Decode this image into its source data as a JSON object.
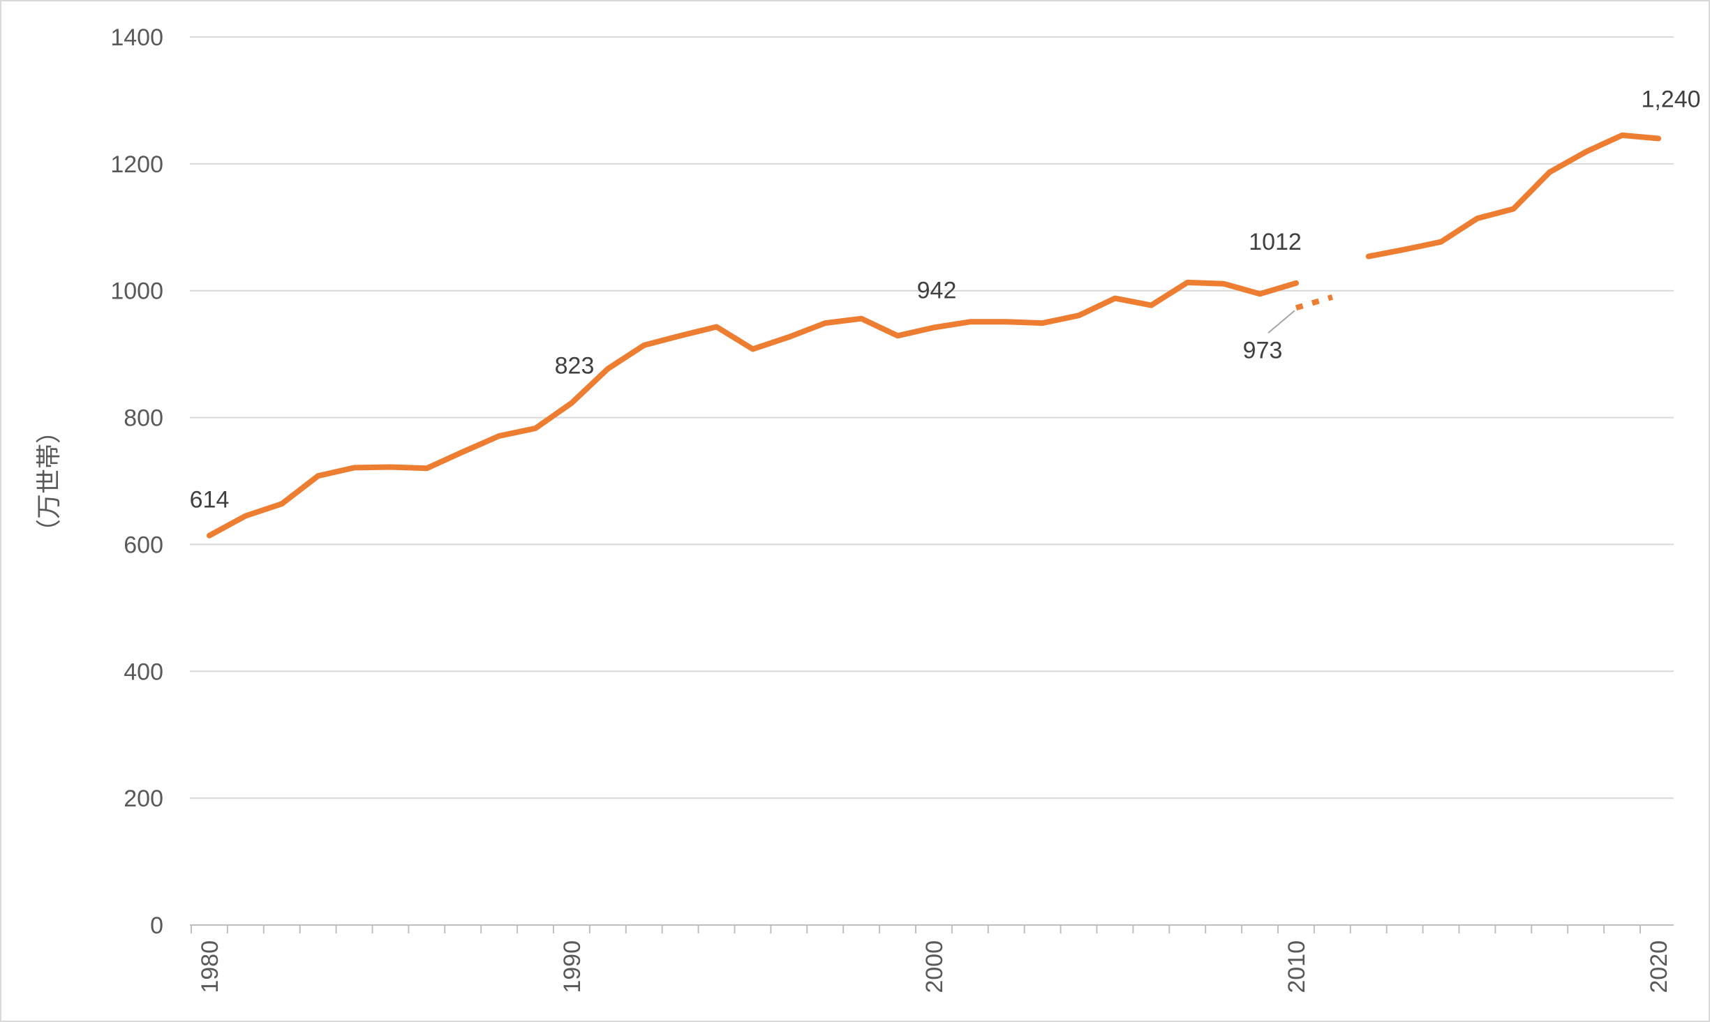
{
  "chart_data": {
    "type": "line",
    "title": "",
    "xlabel": "",
    "ylabel": "（万世帯）",
    "ylim": [
      0,
      1400
    ],
    "yticks": [
      0,
      200,
      400,
      600,
      800,
      1000,
      1200,
      1400
    ],
    "xlim": [
      1980,
      2020
    ],
    "xticks": [
      1980,
      1990,
      2000,
      2010,
      2020
    ],
    "grid": "horizontal",
    "legend": "none",
    "color": "#ED7D31",
    "series": [
      {
        "x": [
          1980,
          1981,
          1982,
          1983,
          1984,
          1985,
          1986,
          1987,
          1988,
          1989,
          1990,
          1991,
          1992,
          1993,
          1994,
          1995,
          1996,
          1997,
          1998,
          1999,
          2000,
          2001,
          2002,
          2003,
          2004,
          2005,
          2006,
          2007,
          2008,
          2009,
          2010
        ],
        "values": [
          614,
          645,
          664,
          708,
          721,
          722,
          720,
          746,
          771,
          783,
          823,
          877,
          914,
          929,
          943,
          908,
          927,
          949,
          956,
          929,
          942,
          951,
          951,
          949,
          961,
          988,
          977,
          1013,
          1011,
          995,
          1012
        ],
        "style": "solid"
      },
      {
        "x": [
          2010,
          2011
        ],
        "values": [
          973,
          990
        ],
        "style": "dashed"
      },
      {
        "x": [
          2012,
          2013,
          2014,
          2015,
          2016,
          2017,
          2018,
          2019,
          2020
        ],
        "values": [
          1054,
          1065,
          1077,
          1114,
          1129,
          1187,
          1219,
          1245,
          1240
        ],
        "style": "solid"
      }
    ],
    "data_labels": [
      {
        "x": 1980,
        "y": 614,
        "text": "614"
      },
      {
        "x": 1990,
        "y": 823,
        "text": "823"
      },
      {
        "x": 2000,
        "y": 942,
        "text": "942"
      },
      {
        "x": 2010,
        "y": 1012,
        "text": "1012"
      },
      {
        "x": 2010,
        "y": 973,
        "text": "973"
      },
      {
        "x": 2020,
        "y": 1240,
        "text": "1,240"
      }
    ]
  }
}
